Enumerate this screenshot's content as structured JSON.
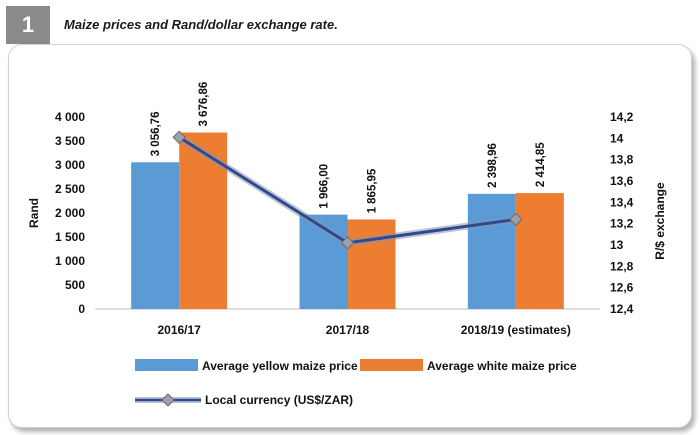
{
  "figure": {
    "number": "1",
    "title": "Maize prices and Rand/dollar exchange rate."
  },
  "chart_data": {
    "type": "bar",
    "categories": [
      "2016/17",
      "2017/18",
      "2018/19 (estimates)"
    ],
    "series": [
      {
        "name": "Average  yellow maize price",
        "values": [
          3056.76,
          1966.0,
          2398.96
        ],
        "labels": [
          "3 056,76",
          "1 966,00",
          "2 398,96"
        ],
        "color": "#5b9bd5"
      },
      {
        "name": "Average  white maize price",
        "values": [
          3676.86,
          1865.95,
          2414.85
        ],
        "labels": [
          "3 676,86",
          "1 865,95",
          "2 414,85"
        ],
        "color": "#ed7d31"
      }
    ],
    "line_series": {
      "name": "Local currency (US$/ZAR)",
      "values": [
        14.01,
        13.02,
        13.24
      ],
      "axis": "right",
      "color": "#2e4a8f",
      "marker_color": "#a0a0a8"
    },
    "ylabel": "Rand",
    "y2label": "R/$ exchange",
    "ylim": [
      0,
      4000
    ],
    "y2lim": [
      12.4,
      14.2
    ],
    "y_ticks": [
      "0",
      "500",
      "1 000",
      "1 500",
      "2 000",
      "2 500",
      "3 000",
      "3 500",
      "4 000"
    ],
    "y2_ticks": [
      "12,4",
      "12,6",
      "12,8",
      "13",
      "13,2",
      "13,4",
      "13,6",
      "13,8",
      "14",
      "14,2"
    ],
    "grid": false,
    "legend": "bottom"
  }
}
